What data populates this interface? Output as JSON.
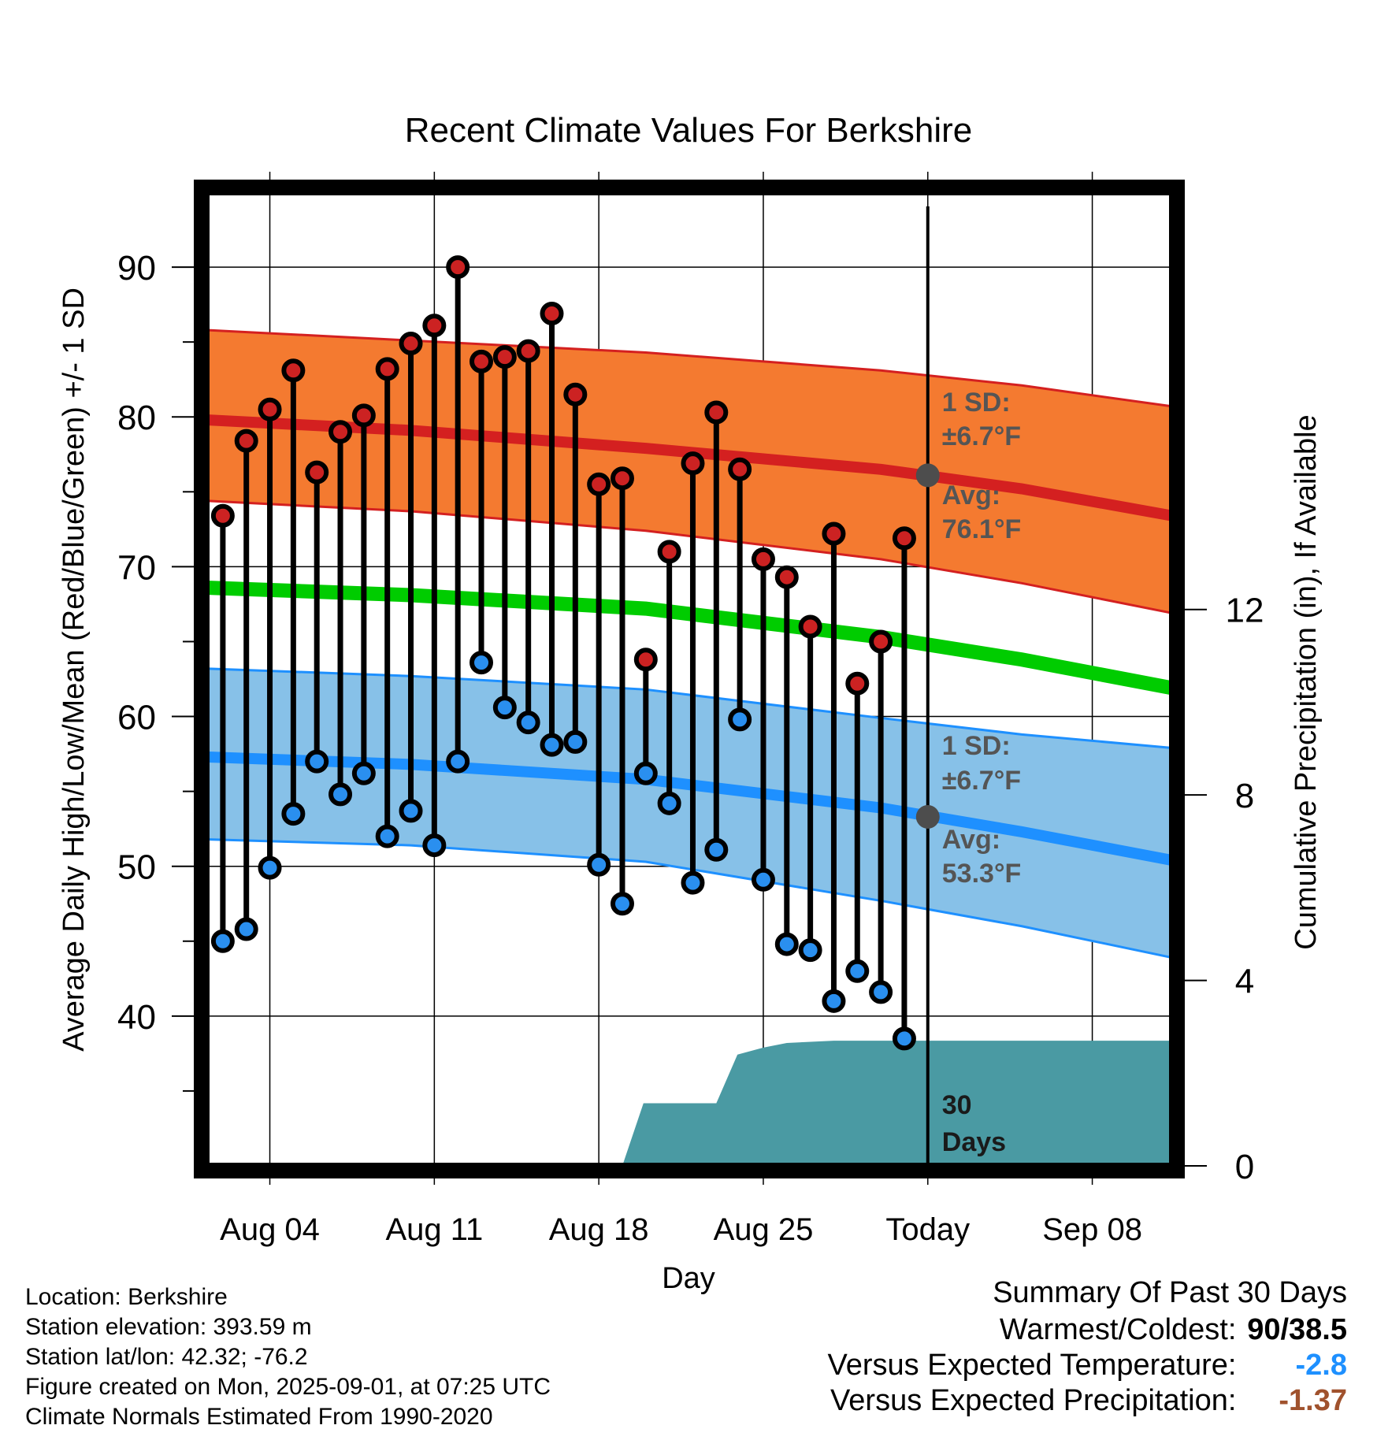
{
  "chart_data": {
    "type": "line",
    "title": "Recent Climate Values For Berkshire",
    "xlabel": "Day",
    "ylabel": "Average Daily High/Low/Mean (Red/Blue/Green) +/- 1 SD",
    "y2label": "Cumulative Precipitation (in), If Available",
    "ylim": [
      30,
      95
    ],
    "y2lim": [
      0,
      21
    ],
    "x_ticks": [
      {
        "day": 4,
        "label": "Aug 04"
      },
      {
        "day": 11,
        "label": "Aug 11"
      },
      {
        "day": 18,
        "label": "Aug 18"
      },
      {
        "day": 25,
        "label": "Aug 25"
      },
      {
        "day": 32,
        "label": "Today"
      },
      {
        "day": 39,
        "label": "Sep 08"
      }
    ],
    "y_ticks": [
      40,
      50,
      60,
      70,
      80,
      90
    ],
    "y2_ticks": [
      0,
      4,
      8,
      12
    ],
    "x_range": [
      1.3,
      42.4
    ],
    "today_day": 32,
    "high_temps": [
      73.4,
      78.4,
      80.5,
      83.1,
      76.3,
      79.0,
      80.1,
      83.2,
      84.9,
      86.1,
      90.0,
      83.7,
      84.0,
      84.4,
      86.9,
      81.5,
      75.5,
      75.9,
      63.8,
      71.0,
      76.9,
      80.3,
      76.5,
      70.5,
      69.3,
      66.0,
      72.2,
      62.2,
      65.0,
      71.9
    ],
    "low_temps": [
      45.0,
      45.8,
      49.9,
      53.5,
      57.0,
      54.8,
      56.2,
      52.0,
      53.7,
      51.4,
      57.0,
      63.6,
      60.6,
      59.6,
      58.1,
      58.3,
      50.1,
      47.5,
      56.2,
      54.2,
      48.9,
      51.1,
      59.8,
      49.1,
      44.8,
      44.4,
      41.0,
      43.0,
      41.6,
      38.5
    ],
    "normal_high": {
      "x": [
        1.3,
        10,
        20,
        30,
        36,
        42.4
      ],
      "avg": [
        79.8,
        79.1,
        77.9,
        76.5,
        75.2,
        73.4
      ],
      "upper": [
        85.8,
        85.1,
        84.3,
        83.1,
        82.1,
        80.7
      ],
      "lower": [
        74.4,
        73.7,
        72.4,
        70.5,
        68.9,
        66.9
      ]
    },
    "normal_mean": {
      "x": [
        1.3,
        10,
        20,
        30,
        36,
        42.4
      ],
      "avg": [
        68.6,
        68.1,
        67.2,
        65.3,
        63.8,
        61.9
      ]
    },
    "normal_low": {
      "x": [
        1.3,
        10,
        20,
        30,
        36,
        42.4
      ],
      "avg": [
        57.3,
        56.8,
        55.8,
        53.9,
        52.3,
        50.4
      ],
      "upper": [
        63.2,
        62.7,
        61.8,
        59.9,
        58.8,
        57.9
      ],
      "lower": [
        51.8,
        51.4,
        50.3,
        47.7,
        46.0,
        43.9
      ]
    },
    "precip_cumulative": {
      "x": [
        1.3,
        19.0,
        19.9,
        23.0,
        23.9,
        25.0,
        26.0,
        28.0,
        30.0,
        42.4
      ],
      "values": [
        0.0,
        0.0,
        1.35,
        1.35,
        2.4,
        2.55,
        2.65,
        2.7,
        2.7,
        2.7
      ]
    },
    "annotations": {
      "high_sd_label": "1 SD:",
      "high_sd_value": "±6.7°F",
      "high_avg_label": "Avg:",
      "high_avg_value": "76.1°F",
      "low_sd_label": "1 SD:",
      "low_sd_value": "±6.7°F",
      "low_avg_label": "Avg:",
      "low_avg_value": "53.3°F",
      "days_number": "30",
      "days_word": "Days"
    },
    "today_high_avg": 76.1,
    "today_low_avg": 53.3,
    "grid": true
  },
  "info": {
    "location": "Location: Berkshire",
    "elevation": "Station elevation: 393.59 m",
    "latlon": "Station lat/lon: 42.32; -76.2",
    "created": "Figure created on Mon, 2025-09-01, at 07:25 UTC",
    "normals": "Climate Normals Estimated From 1990-2020"
  },
  "summary": {
    "title": "Summary Of Past 30 Days",
    "warmest_label": "Warmest/Coldest:",
    "warmest_value": "90/38.5",
    "temp_label": "Versus Expected Temperature:",
    "temp_value": "-2.8",
    "temp_color": "#1e90ff",
    "precip_label": "Versus Expected Precipitation:",
    "precip_value": "-1.37",
    "precip_color": "#a0522d"
  },
  "colors": {
    "high_band": "#f47a30",
    "high_line": "#d42020",
    "mean_line": "#00cc00",
    "low_band": "#87c1e8",
    "low_line": "#1e90ff",
    "precip_fill": "#4a9aa3",
    "high_dot": "#cc2222",
    "low_dot": "#2a8fef",
    "annotation": "#555555"
  }
}
